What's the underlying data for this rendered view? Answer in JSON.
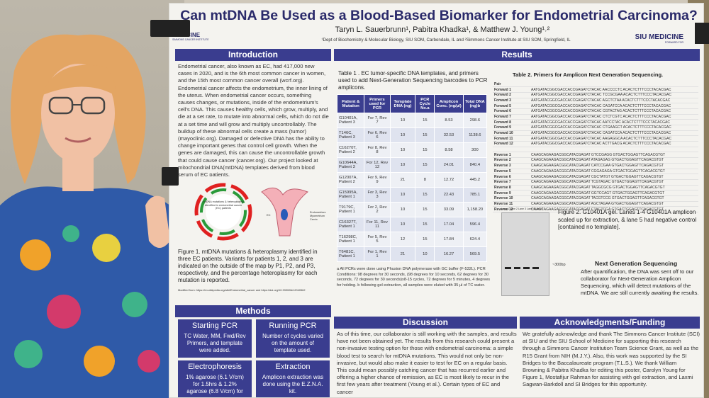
{
  "title": "Can mtDNA Be Used as a Blood-Based Biomarker for Endometrial Carcinoma?",
  "authors": "Taryn L. Sauerbrunn¹, Pabitra Khadka¹, & Matthew J. Young¹˒²",
  "affiliations": "¹Dept of Biochemistry & Molecular Biology, SIU SOM, Carbondale, IL and ²Simmons Cancer Institute at SIU SOM, Springfield, IL",
  "logo_left": "MEDICINE",
  "logo_left_sub": "SIMMONS CANCER INSTITUTE",
  "logo_right": "SIU MEDICINE",
  "logo_right_sub": "FORWARD FOR",
  "intro_header": "Introduction",
  "intro_text": "Endometrial cancer, also known as EC, had 417,000 new cases in 2020, and is the 6th most common cancer in women, and the 15th most common cancer overall (wcrf.org). Endometrial cancer affects the endometrium, the inner lining of the uterus. When endometrial cancer occurs, something causes changes, or mutations, inside of the endometrium's cell's DNA. This causes healthy cells, which grow, multiply, and die at a set rate, to mutate into abnormal cells, which do not die at a set time and will grow and multiply uncontrollably. The buildup of these abnormal cells create a mass (tumor) (mayoclinic.org). Damaged or defective DNA has the ability to change important genes that control cell growth. When the genes are damaged, this can cause the uncontrollable growth that could cause cancer (cancer.org). Our project looked at mitochondrial DNA(mtDNA) templates derived from blood serum of EC patients.",
  "fig1_center": "mtDNA mutations & heteroplasmy identified in endometrial cancer (EC) patients",
  "fig1_labels": {
    "ec": "EC",
    "endometrium": "Endometrium",
    "myometrium": "Myometrium",
    "cervix": "Cervix"
  },
  "fig1_caption": "Figure 1. mtDNA mutations & heteroplasmy identified in three EC patients. Variants for patients 1, 2, and 3 are indicated on the outside of the map by P1, P2, and P3, respectively, and the percentage heteroplasmy for each mutation is reported.",
  "fig1_modified": "Modified from: https://en.wikipedia.org/wiki/Endometrial_cancer and https://doi.org/10.3390/life12040562",
  "methods_header": "Methods",
  "methods": [
    {
      "h": "Starting PCR",
      "t": "TC Water, MM, Fwd/Rev Primers, and template were added."
    },
    {
      "h": "Running PCR",
      "t": "Number of cycles varied on the amount of template used."
    },
    {
      "h": "Electrophoresis",
      "t": "1% agarose (6.1 V/cm) for 1.5hrs & 1.2% agarose (6.8 V/cm) for"
    },
    {
      "h": "Extraction",
      "t": "Amplicon extraction was done using the E.Z.N.A. kit."
    }
  ],
  "results_header": "Results",
  "table1_title": "Table 1 . EC tumor-specific DNA templates, and primers used to add Next-Generation Sequencing barcodes to PCR amplicons.",
  "table1_headers": [
    "Patient & Mutation",
    "Primers used for PCR",
    "Template DNA (ng)",
    "PCR Cycle No.a",
    "Amplicon Conc. (ng/µl)",
    "Total DNA (ng)b"
  ],
  "table1_rows": [
    [
      "G10401A, Patient 3",
      "For 7, Rev 7",
      "10",
      "15",
      "8.53",
      "298.6"
    ],
    [
      "T146C, Patient 3",
      "For 6, Rev 6",
      "10",
      "15",
      "32.53",
      "1138.6"
    ],
    [
      "C16270T, Patient 2",
      "For 8, Rev 8",
      "10",
      "15",
      "8.58",
      "300"
    ],
    [
      "G10644A, Patient 3",
      "For 12, Rev 12",
      "10",
      "15",
      "24.01",
      "840.4"
    ],
    [
      "G12007A, Patient 2",
      "For 9, Rev 9",
      "21",
      "8",
      "12.72",
      "445.2"
    ],
    [
      "G15995A, Patient 1",
      "For 3, Rev 3",
      "10",
      "15",
      "22.43",
      "785.1"
    ],
    [
      "T9179C, Patient 1",
      "For 2, Rev 2",
      "10",
      "15",
      "33.09",
      "1,158.20"
    ],
    [
      "C16327T, Patient 1",
      "For 11, Rev 11",
      "10",
      "15",
      "17.04",
      "596.4"
    ],
    [
      "T16298C, Patient 1",
      "For 5, Rev 5",
      "12",
      "15",
      "17.84",
      "624.4"
    ],
    [
      "T6481C, Patient 1",
      "For 1, Rev 1",
      "21",
      "10",
      "16.27",
      "569.5"
    ]
  ],
  "table1_notes": "a All PCRs were done using Phusion DNA polymerase with GC buffer (F-532L). PCR Conditions: 98 degrees for 30 seconds, (98 degrees for 10 seconds, 62 degrees for 30 seconds, 72 degrees for 30 seconds)x8-15 cycles, 72 degrees for 5 minutes, 4 degrees for holding. b following gel extraction, all samples were eluted with 35 µl of TC water.",
  "table2_title": "Table 2. Primers for Amplicon Next Generation Sequencing.",
  "table2_header": "Pair",
  "table2_rows": [
    [
      "Forward 1",
      "AATGATACGGCGACCACCGAGATCTACAC AACCCCTC ACACTCTTTCCCTACACGAC"
    ],
    [
      "Forward 2",
      "AATGATACGGCGACCACCGAGATCTACAC TCCGCGAA ACACTCTTTCCCTACACGAC"
    ],
    [
      "Forward 3",
      "AATGATACGGCGACCACCGAGATCTACAC AGCTCTAA ACACTCTTTCCCTACACGAC"
    ],
    [
      "Forward 5",
      "AATGATACGGCGACCACCGAGATCTACAC CAGATCCA ACACTCTTTCCCTACACGAC"
    ],
    [
      "Forward 6",
      "AATGATACGGCGACCACCGAGATCTACAC CGTACTAG ACACTCTTTCCCTACACGAC"
    ],
    [
      "Forward 7",
      "AATGATACGGCGACCACCGAGATCTACAC CTCTCGTC ACACTCTTTCCCTACACGAC"
    ],
    [
      "Forward 8",
      "AATGATACGGCGACCACCGAGATCTACAC AATCCTAC ACACTCTTTCCCTACACGAC"
    ],
    [
      "Forward 9",
      "AATGATACGGCGACCACCGAGATCTACAC CTGAAGCT ACACTCTTTCCCTACACGAC"
    ],
    [
      "Forward 10",
      "AATGATACGGCGACCACCGAGATCTACAC CAGATCCA ACACTCTTTCCCTACACGAC"
    ],
    [
      "Forward 11",
      "AATGATACGGCGACCACCGAGATCTACAC AAGAGGCA ACACTCTTTCCCTACACGAC"
    ],
    [
      "Forward 12",
      "AATGATACGGCGACCACCGAGATCTACAC ACTTGACG ACACTCTTTCCCTACACGAC"
    ],
    [
      "",
      ""
    ],
    [
      "Reverse 1",
      "CAAGCAGAAGACGGCATACGAGAT GTCCGAGG GTGACTGGAGTTCAGACGTGT"
    ],
    [
      "Reverse 2",
      "CAAGCAGAAGACGGCATACGAGAT ATAGAGAG GTGACTGGAGTTCAGACGTGT"
    ],
    [
      "Reverse 3",
      "CAAGCAGAAGACGGCATACGAGAT CATCCGAA GTGACTGGAGTTCAGACGTGT"
    ],
    [
      "Reverse 5",
      "CAAGCAGAAGACGGCATACGAGAT CGGAGAGA GTGACTGGAGTTCAGACGTGT"
    ],
    [
      "Reverse 6",
      "CAAGCAGAAGACGGCATACGAGAT CGCTATGT GTGACTGGAGTTCAGACGTGT"
    ],
    [
      "Reverse 7",
      "CAAGCAGAAGACGGCATACGAGAT TCGTAGAC GTGACTGGAGTTCAGACGTGT"
    ],
    [
      "Reverse 8",
      "CAAGCAGAAGACGGCATACGAGAT TAGGCGCG GTGACTGGAGTTCAGACGTGT"
    ],
    [
      "Reverse 9",
      "CAAGCAGAAGACGGCATACGAGAT GGTCCAGT GTGACTGGAGTTCAGACGTGT"
    ],
    [
      "Reverse 10",
      "CAAGCAGAAGACGGCATACGAGAT TACGTCCG GTGACTGGAGTTCAGACGTGT"
    ],
    [
      "Reverse 11",
      "CAAGCAGAAGACGGCATACGAGAT AGCTAGAA GTGACTGGAGTTCAGACGTGT"
    ],
    [
      "Reverse 12",
      "CAAGCAGAAGACGGCATACGAGAT CTAGTCGA GTGACTGGAGTTCAGACGTGT"
    ]
  ],
  "gel_lanes": "Lane 1 Lane 2 Lane 3 Lane 4 Lane 5",
  "gel_marker": "~300bp",
  "fig2_caption": "Figure 2. G10401A gel. Lanes 1-4 G10401A amplicon scaled up for extraction, & lane 5 had negative control [contained no template].",
  "ngs_header": "Next Generation Sequencing",
  "ngs_text": "After quantification, the DNA was sent off to our collaborator for Next-Generation Amplicon Sequencing, which will detect mutations of the mtDNA. We are still currently awaiting the results.",
  "discussion_header": "Discussion",
  "discussion_text": "As of this time, our collaborator is still working with the samples, and results have not been obtained yet. The results from this research could present a non-invasive testing option for those with endometrial carcinoma: a simple blood test to search for mtDNA mutations. This would not only be non-invasive, but would also make it easier to test for EC on a regular basis. This could mean possibly catching cancer that has recurred earlier and offering a higher chance of remission, as EC is most likely to recur in the first few years after treatment (Young et al.). Certain types of EC and cancer",
  "ack_header": "Acknowledgments/Funding",
  "ack_text": "We gratefully acknowledge and thank The Simmons Cancer Institute (SCI) at SIU and the SIU School of Medicine for supporting this research through a Simmons Cancer Institution Team Science Grant, as well as the R15 Grant from NIH (M.J.Y.). Also, this work was supported by the SI Bridges to the Baccalaureate program (T.L.S.). We thank William Browning & Pabitra Khadka for editing this poster, Carolyn Young for Figure 1, Mostafijur Rahman for assisting with gel extraction, and Laxmi Sagwan-Barkdoll and SI Bridges for this opportunity.",
  "colors": {
    "banner": "#3a3d8f",
    "title": "#2a2a6a",
    "poster_bg": "#f4f3ef"
  }
}
